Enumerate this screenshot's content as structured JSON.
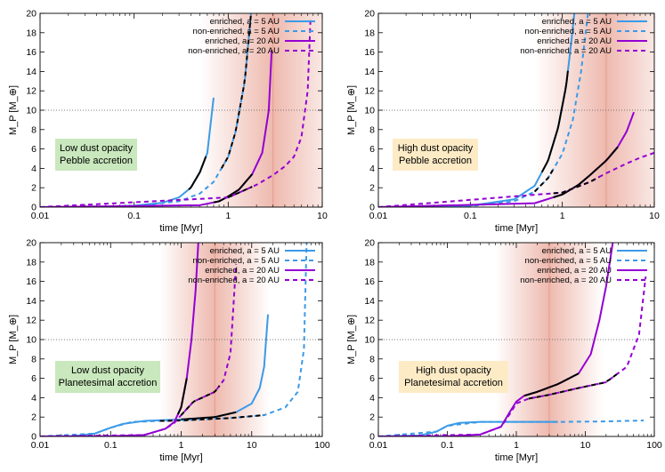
{
  "colors": {
    "enriched_5": "#3b9ae8",
    "enriched_20": "#9400d3",
    "phase": "#000000",
    "band": "#e0806c",
    "box_low": "#c9e8bd",
    "box_high": "#fdebc6"
  },
  "chart_data": [
    {
      "id": "p1",
      "type": "line",
      "xscale": "log",
      "xlim": [
        0.01,
        10
      ],
      "ylim": [
        0,
        20
      ],
      "xticks": [
        0.01,
        0.1,
        1,
        10
      ],
      "xtick_labels": [
        "0.01",
        "0.1",
        "1",
        "10"
      ],
      "yticks": [
        0,
        2,
        4,
        6,
        8,
        10,
        12,
        14,
        16,
        18,
        20
      ],
      "ytick_labels": [
        "0",
        "2",
        "4",
        "6",
        "8",
        "10",
        "12",
        "14",
        "16",
        "18",
        "20"
      ],
      "xlabel": "time [Myr]",
      "ylabel": "M_P [M_⊕]",
      "hline": 10,
      "band": {
        "center": 3,
        "half_width": 6
      },
      "box": {
        "style": "low",
        "lines": [
          "Low dust opacity",
          "Pebble accretion"
        ]
      },
      "legend_position": "top-right",
      "legend": [
        "enriched, a = 5 AU",
        "non-enriched, a = 5 AU",
        "enriched, a = 20 AU",
        "non-enriched, a = 20 AU"
      ],
      "series": [
        {
          "name": "enriched, a = 5 AU",
          "color": "enriched_5",
          "dash": false,
          "points": [
            [
              0.01,
              0
            ],
            [
              0.05,
              0.05
            ],
            [
              0.1,
              0.15
            ],
            [
              0.2,
              0.45
            ],
            [
              0.3,
              1.0
            ],
            [
              0.4,
              2.0
            ],
            [
              0.5,
              3.6
            ],
            [
              0.6,
              5.6
            ],
            [
              0.7,
              11.3
            ]
          ],
          "phase": [
            0.38,
            0.58
          ]
        },
        {
          "name": "non-enriched, a = 5 AU",
          "color": "enriched_5",
          "dash": true,
          "points": [
            [
              0.01,
              0
            ],
            [
              0.1,
              0.1
            ],
            [
              0.3,
              0.6
            ],
            [
              0.5,
              1.4
            ],
            [
              0.7,
              2.6
            ],
            [
              1.0,
              5.2
            ],
            [
              1.2,
              7.8
            ],
            [
              1.5,
              13
            ],
            [
              1.75,
              20
            ]
          ],
          "phase": [
            0.85,
            1.75
          ]
        },
        {
          "name": "enriched, a = 20 AU",
          "color": "enriched_20",
          "dash": false,
          "points": [
            [
              0.01,
              0
            ],
            [
              0.5,
              0.2
            ],
            [
              0.8,
              0.6
            ],
            [
              1.0,
              1.1
            ],
            [
              1.3,
              1.8
            ],
            [
              1.8,
              3.4
            ],
            [
              2.3,
              5.6
            ],
            [
              2.7,
              10
            ],
            [
              2.9,
              16.2
            ]
          ],
          "phase": [
            0.7,
            1.8
          ]
        },
        {
          "name": "non-enriched, a = 20 AU",
          "color": "enriched_20",
          "dash": true,
          "points": [
            [
              0.01,
              0
            ],
            [
              1.0,
              1.0
            ],
            [
              2.0,
              2.3
            ],
            [
              3.0,
              3.3
            ],
            [
              4.0,
              4.2
            ],
            [
              5.0,
              5.2
            ],
            [
              6.0,
              7.2
            ],
            [
              7.0,
              12
            ],
            [
              7.5,
              19.5
            ]
          ],
          "phase": [
            1.0,
            1.8
          ]
        }
      ]
    },
    {
      "id": "p2",
      "type": "line",
      "xscale": "log",
      "xlim": [
        0.01,
        10
      ],
      "ylim": [
        0,
        20
      ],
      "xticks": [
        0.01,
        0.1,
        1,
        10
      ],
      "xtick_labels": [
        "0.01",
        "0.1",
        "1",
        "10"
      ],
      "yticks": [
        0,
        2,
        4,
        6,
        8,
        10,
        12,
        14,
        16,
        18,
        20
      ],
      "ytick_labels": [
        "0",
        "2",
        "4",
        "6",
        "8",
        "10",
        "12",
        "14",
        "16",
        "18",
        "20"
      ],
      "xlabel": "time [Myr]",
      "ylabel": "M_P [M_⊕]",
      "hline": 10,
      "band": {
        "center": 3,
        "half_width": 6
      },
      "box": {
        "style": "high",
        "lines": [
          "High dust opacity",
          "Pebble accretion"
        ]
      },
      "legend_position": "top-right",
      "legend": [
        "enriched, a = 5 AU",
        "non-enriched, a = 5 AU",
        "enriched, a = 20 AU",
        "non-enriched, a = 20 AU"
      ],
      "series": [
        {
          "name": "enriched, a = 5 AU",
          "color": "enriched_5",
          "dash": false,
          "points": [
            [
              0.01,
              0
            ],
            [
              0.1,
              0.15
            ],
            [
              0.3,
              0.8
            ],
            [
              0.5,
              2.2
            ],
            [
              0.7,
              4.8
            ],
            [
              0.9,
              8.2
            ],
            [
              1.1,
              12.5
            ],
            [
              1.25,
              17
            ],
            [
              1.35,
              20
            ]
          ],
          "phase": [
            0.6,
            1.15
          ]
        },
        {
          "name": "non-enriched, a = 5 AU",
          "color": "enriched_5",
          "dash": true,
          "points": [
            [
              0.01,
              0
            ],
            [
              0.1,
              0.1
            ],
            [
              0.3,
              0.6
            ],
            [
              0.5,
              1.6
            ],
            [
              0.7,
              3.0
            ],
            [
              1.0,
              5.5
            ],
            [
              1.3,
              9
            ],
            [
              1.6,
              14
            ],
            [
              1.9,
              20
            ]
          ],
          "phase": [
            0.5,
            0.8
          ]
        },
        {
          "name": "enriched, a = 20 AU",
          "color": "enriched_20",
          "dash": false,
          "points": [
            [
              0.01,
              0
            ],
            [
              0.5,
              0.4
            ],
            [
              1.0,
              1.3
            ],
            [
              1.5,
              2.3
            ],
            [
              2.0,
              3.3
            ],
            [
              3.0,
              4.8
            ],
            [
              4.0,
              6.2
            ],
            [
              5.0,
              7.8
            ],
            [
              6.0,
              9.8
            ]
          ],
          "phase": [
            0.8,
            4.0
          ]
        },
        {
          "name": "non-enriched, a = 20 AU",
          "color": "enriched_20",
          "dash": true,
          "points": [
            [
              0.01,
              0
            ],
            [
              1.0,
              1.5
            ],
            [
              2.0,
              2.6
            ],
            [
              3.0,
              3.5
            ],
            [
              5.0,
              4.5
            ],
            [
              7.0,
              5.1
            ],
            [
              10,
              5.6
            ]
          ],
          "phase": [
            0.8,
            2.5
          ]
        }
      ]
    },
    {
      "id": "p3",
      "type": "line",
      "xscale": "log",
      "xlim": [
        0.01,
        100
      ],
      "ylim": [
        0,
        20
      ],
      "xticks": [
        0.01,
        0.1,
        1,
        10,
        100
      ],
      "xtick_labels": [
        "0.01",
        "0.1",
        "1",
        "10",
        "100"
      ],
      "yticks": [
        0,
        2,
        4,
        6,
        8,
        10,
        12,
        14,
        16,
        18,
        20
      ],
      "ytick_labels": [
        "0",
        "2",
        "4",
        "6",
        "8",
        "10",
        "12",
        "14",
        "16",
        "18",
        "20"
      ],
      "xlabel": "time [Myr]",
      "ylabel": "M_P [M_⊕]",
      "hline": 10,
      "band": {
        "center": 3,
        "half_width": 6
      },
      "box": {
        "style": "low",
        "lines": [
          "Low dust opacity",
          "Planetesimal accretion"
        ]
      },
      "legend_position": "top-right",
      "legend": [
        "enriched, a = 5 AU",
        "non-enriched, a = 5 AU",
        "enriched, a = 20 AU",
        "non-enriched, a = 20 AU"
      ],
      "series": [
        {
          "name": "enriched, a = 5 AU",
          "color": "enriched_5",
          "dash": false,
          "points": [
            [
              0.01,
              0
            ],
            [
              0.03,
              0.05
            ],
            [
              0.06,
              0.3
            ],
            [
              0.1,
              0.9
            ],
            [
              0.15,
              1.3
            ],
            [
              0.3,
              1.6
            ],
            [
              1.0,
              1.75
            ],
            [
              3.0,
              2.0
            ],
            [
              6.0,
              2.5
            ],
            [
              10,
              3.4
            ],
            [
              13,
              5.0
            ],
            [
              15,
              7.2
            ],
            [
              17,
              12.6
            ]
          ],
          "phase": [
            1.0,
            6.0
          ]
        },
        {
          "name": "non-enriched, a = 5 AU",
          "color": "enriched_5",
          "dash": true,
          "points": [
            [
              0.01,
              0
            ],
            [
              0.06,
              0.3
            ],
            [
              0.1,
              0.9
            ],
            [
              0.2,
              1.5
            ],
            [
              0.5,
              1.6
            ],
            [
              1.0,
              1.65
            ],
            [
              5.0,
              1.9
            ],
            [
              15,
              2.2
            ],
            [
              30,
              3.0
            ],
            [
              45,
              4.6
            ],
            [
              55,
              9
            ],
            [
              60,
              20
            ]
          ],
          "phase": [
            0.5,
            15
          ]
        },
        {
          "name": "enriched, a = 20 AU",
          "color": "enriched_20",
          "dash": false,
          "points": [
            [
              0.01,
              0
            ],
            [
              0.1,
              0.03
            ],
            [
              0.3,
              0.15
            ],
            [
              0.6,
              0.8
            ],
            [
              0.8,
              1.5
            ],
            [
              1.0,
              3.0
            ],
            [
              1.2,
              6.0
            ],
            [
              1.4,
              10
            ],
            [
              1.6,
              15
            ],
            [
              1.75,
              20
            ]
          ],
          "phase": [
            0.9,
            1.2
          ]
        },
        {
          "name": "non-enriched, a = 20 AU",
          "color": "enriched_20",
          "dash": true,
          "points": [
            [
              0.01,
              0
            ],
            [
              0.3,
              0.15
            ],
            [
              0.6,
              0.8
            ],
            [
              0.8,
              1.4
            ],
            [
              1.0,
              2.2
            ],
            [
              1.5,
              3.6
            ],
            [
              3.0,
              4.6
            ],
            [
              4.0,
              5.8
            ],
            [
              5.0,
              8.6
            ],
            [
              6.0,
              17.8
            ]
          ],
          "phase": [
            1.0,
            3.5
          ]
        }
      ]
    },
    {
      "id": "p4",
      "type": "line",
      "xscale": "log",
      "xlim": [
        0.01,
        100
      ],
      "ylim": [
        0,
        20
      ],
      "xticks": [
        0.01,
        0.1,
        1,
        10,
        100
      ],
      "xtick_labels": [
        "0.01",
        "0.1",
        "1",
        "10",
        "100"
      ],
      "yticks": [
        0,
        2,
        4,
        6,
        8,
        10,
        12,
        14,
        16,
        18,
        20
      ],
      "ytick_labels": [
        "0",
        "2",
        "4",
        "6",
        "8",
        "10",
        "12",
        "14",
        "16",
        "18",
        "20"
      ],
      "xlabel": "time [Myr]",
      "ylabel": "M_P [M_⊕]",
      "hline": 10,
      "band": {
        "center": 3,
        "half_width": 6
      },
      "box": {
        "style": "high",
        "lines": [
          "High dust opacity",
          "Planetesimal accretion"
        ]
      },
      "legend_position": "top-right",
      "legend": [
        "enriched, a = 5 AU",
        "non-enriched, a = 5 AU",
        "enriched, a = 20 AU",
        "non-enriched, a = 20 AU"
      ],
      "series": [
        {
          "name": "enriched, a = 5 AU",
          "color": "enriched_5",
          "dash": false,
          "points": [
            [
              0.01,
              0
            ],
            [
              0.04,
              0.1
            ],
            [
              0.07,
              0.5
            ],
            [
              0.1,
              1.1
            ],
            [
              0.15,
              1.4
            ],
            [
              0.3,
              1.5
            ],
            [
              1.0,
              1.5
            ],
            [
              4.0,
              1.5
            ]
          ],
          "phase": null
        },
        {
          "name": "non-enriched, a = 5 AU",
          "color": "enriched_5",
          "dash": true,
          "points": [
            [
              0.01,
              0
            ],
            [
              0.07,
              0.5
            ],
            [
              0.1,
              1.1
            ],
            [
              0.3,
              1.5
            ],
            [
              4.0,
              1.5
            ],
            [
              20,
              1.55
            ],
            [
              70,
              1.65
            ]
          ],
          "phase": null
        },
        {
          "name": "enriched, a = 20 AU",
          "color": "enriched_20",
          "dash": false,
          "points": [
            [
              0.01,
              0
            ],
            [
              0.1,
              0.02
            ],
            [
              0.3,
              0.2
            ],
            [
              0.6,
              1.0
            ],
            [
              0.8,
              2.5
            ],
            [
              1.0,
              3.6
            ],
            [
              1.3,
              4.2
            ],
            [
              2.0,
              4.6
            ],
            [
              4.0,
              5.4
            ],
            [
              8.0,
              6.5
            ],
            [
              12,
              8.5
            ],
            [
              16,
              12
            ],
            [
              20,
              15.5
            ],
            [
              25,
              20
            ]
          ],
          "phase": [
            1.3,
            8.0
          ]
        },
        {
          "name": "non-enriched, a = 20 AU",
          "color": "enriched_20",
          "dash": true,
          "points": [
            [
              0.01,
              0
            ],
            [
              0.3,
              0.2
            ],
            [
              0.6,
              1.0
            ],
            [
              0.8,
              2.3
            ],
            [
              1.0,
              3.4
            ],
            [
              1.5,
              3.9
            ],
            [
              3.0,
              4.3
            ],
            [
              8.0,
              5.0
            ],
            [
              20,
              5.6
            ],
            [
              40,
              7.2
            ],
            [
              60,
              10.5
            ],
            [
              75,
              16.5
            ]
          ],
          "phase": [
            1.5,
            30
          ]
        }
      ]
    }
  ]
}
